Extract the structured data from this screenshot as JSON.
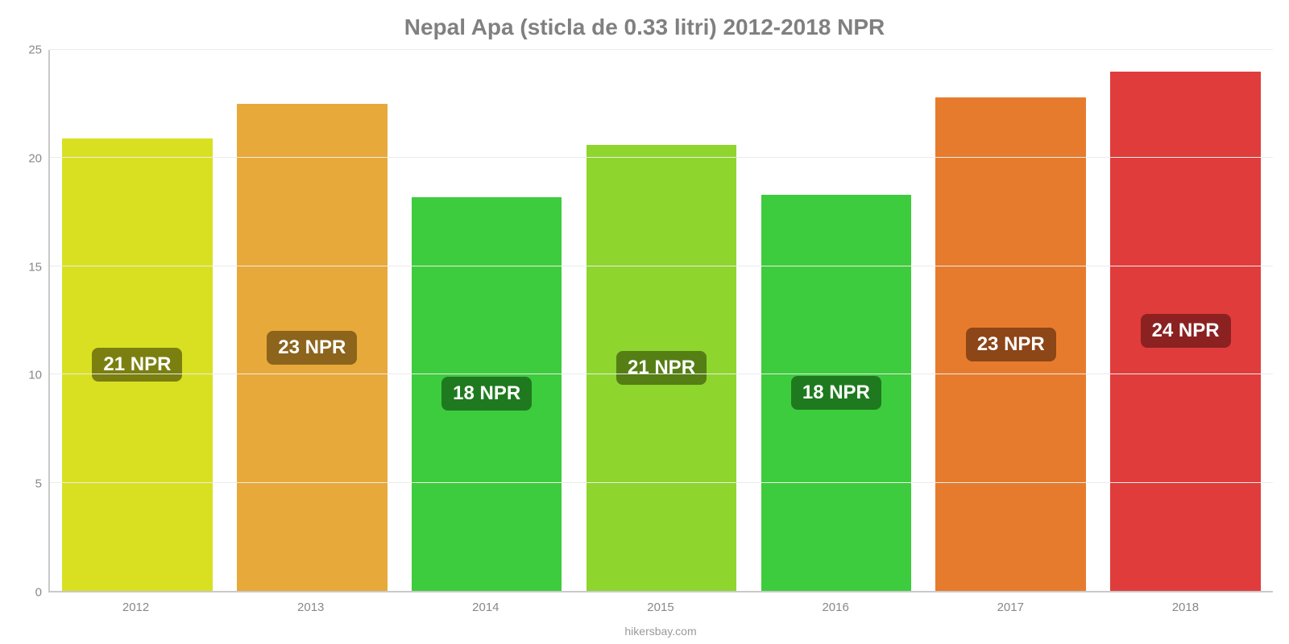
{
  "chart": {
    "type": "bar",
    "title": "Nepal Apa (sticla de 0.33 litri) 2012-2018 NPR",
    "title_color": "#808080",
    "title_fontsize": 28,
    "background_color": "#ffffff",
    "grid_color": "#ebebeb",
    "axis_color": "#c9c9c9",
    "tick_color": "#888888",
    "tick_fontsize": 15,
    "bar_label_fontsize": 24,
    "bar_label_text_color": "#ffffff",
    "bar_width_pct": 86,
    "ylim": [
      0,
      25
    ],
    "yticks": [
      0,
      5,
      10,
      15,
      20,
      25
    ],
    "categories": [
      "2012",
      "2013",
      "2014",
      "2015",
      "2016",
      "2017",
      "2018"
    ],
    "values": [
      20.9,
      22.5,
      18.2,
      20.6,
      18.3,
      22.8,
      24.0
    ],
    "bar_labels": [
      "21 NPR",
      "23 NPR",
      "18 NPR",
      "21 NPR",
      "18 NPR",
      "23 NPR",
      "24 NPR"
    ],
    "bar_colors": [
      "#d9e022",
      "#e7a93a",
      "#3dcc3d",
      "#8ed52e",
      "#3dcc3d",
      "#e77b2d",
      "#e03c3c"
    ],
    "bar_label_bg_colors": [
      "#7b7f0f",
      "#8c641b",
      "#1f7a1f",
      "#557f14",
      "#1f7a1f",
      "#8c4617",
      "#8c2121"
    ],
    "footer": "hikersbay.com",
    "footer_color": "#9a9a9a",
    "footer_fontsize": 14
  }
}
